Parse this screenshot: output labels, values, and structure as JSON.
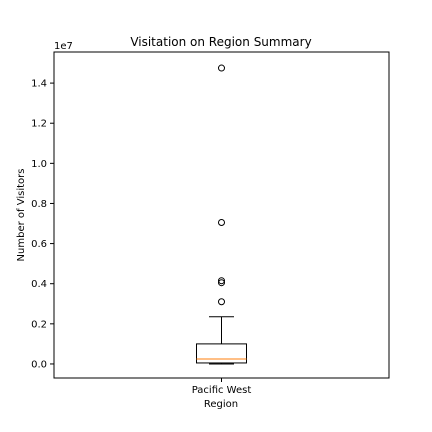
{
  "chart_data": {
    "type": "box",
    "title": "Visitation on Region Summary",
    "xlabel": "Region",
    "ylabel": "Number of Visitors",
    "offset_text": "1e7",
    "categories": [
      "Pacific West"
    ],
    "ylim": [
      -0.07,
      1.555
    ],
    "yticks": [
      0.0,
      0.2,
      0.4,
      0.6,
      0.8,
      1.0,
      1.2,
      1.4
    ],
    "ytick_labels": [
      "0.0",
      "0.2",
      "0.4",
      "0.6",
      "0.8",
      "1.0",
      "1.2",
      "1.4"
    ],
    "y_scale_multiplier": 10000000,
    "boxes": [
      {
        "category": "Pacific West",
        "whisker_low": 0.0,
        "q1": 0.005,
        "median": 0.025,
        "q3": 0.1,
        "whisker_high": 0.235,
        "outliers": [
          1.475,
          0.705,
          0.415,
          0.405,
          0.31
        ]
      }
    ],
    "colors": {
      "median": "#ff7f0e",
      "box": "#000000",
      "outlier_edge": "#000000"
    },
    "grid": false
  }
}
